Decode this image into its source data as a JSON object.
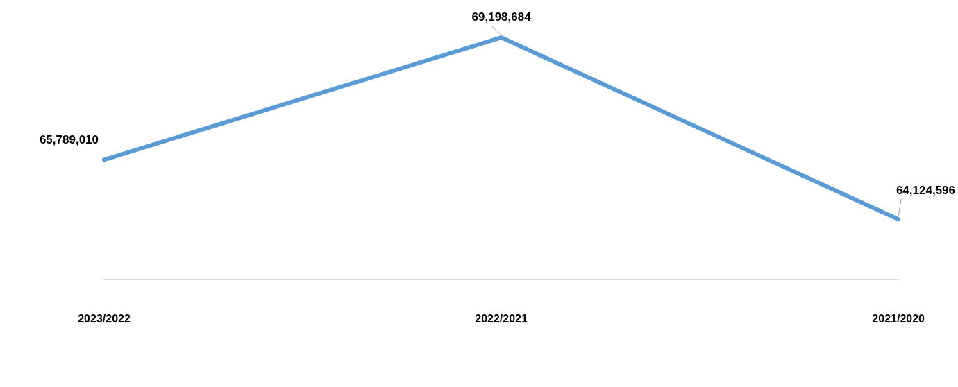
{
  "chart_data": {
    "type": "line",
    "categories": [
      "2023/2022",
      "2022/2021",
      "2021/2020"
    ],
    "series": [
      {
        "color": "#5b9bd5",
        "values": [
          65789010,
          69198684,
          64124596
        ],
        "value_labels": [
          "65,789,010",
          "69,198,684",
          "64,124,596"
        ]
      }
    ],
    "tick_labels": "x",
    "grid": false,
    "legend": false,
    "marker": "none",
    "line_style": "solid"
  }
}
